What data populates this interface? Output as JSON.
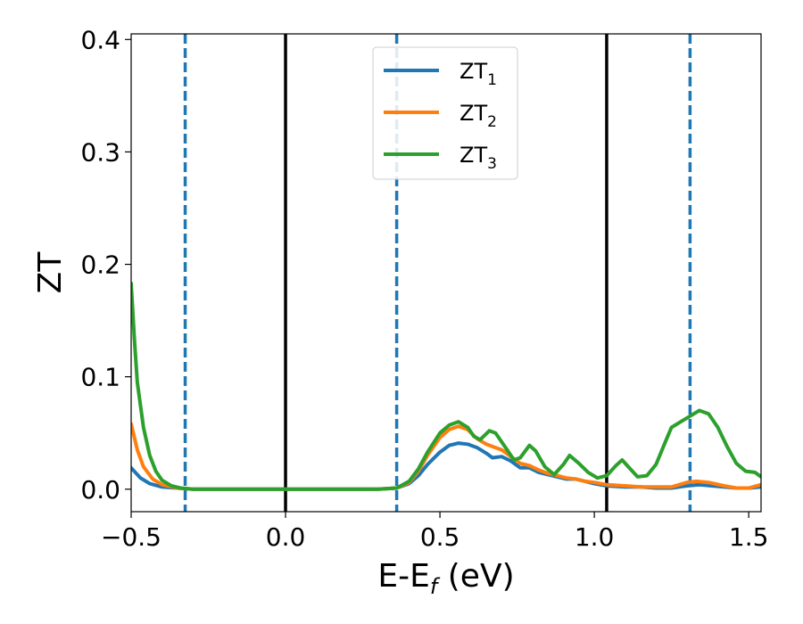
{
  "chart_data": {
    "type": "line",
    "xlabel": {
      "main": "E-E",
      "sub": "f",
      "unit": " (eV)"
    },
    "ylabel": "ZT",
    "xlim": [
      -0.5,
      1.54
    ],
    "ylim": [
      -0.02,
      0.405
    ],
    "xticks": [
      -0.5,
      0.0,
      0.5,
      1.0,
      1.5
    ],
    "xtick_labels": [
      "−0.5",
      "0.0",
      "0.5",
      "1.0",
      "1.5"
    ],
    "yticks": [
      0.0,
      0.1,
      0.2,
      0.3,
      0.4
    ],
    "ytick_labels": [
      "0.0",
      "0.1",
      "0.2",
      "0.3",
      "0.4"
    ],
    "grid": false,
    "legend_position": "top-center",
    "vlines": [
      {
        "x": -0.325,
        "style": "dashed",
        "color": "#1f77b4"
      },
      {
        "x": 0.0,
        "style": "solid",
        "color": "#000000"
      },
      {
        "x": 0.36,
        "style": "dashed",
        "color": "#1f77b4"
      },
      {
        "x": 1.04,
        "style": "solid",
        "color": "#000000"
      },
      {
        "x": 1.31,
        "style": "dashed",
        "color": "#1f77b4"
      }
    ],
    "series": [
      {
        "name": "ZT",
        "name_sub": "1",
        "color": "#1f77b4",
        "points": [
          [
            -0.5,
            0.019
          ],
          [
            -0.47,
            0.01
          ],
          [
            -0.44,
            0.005
          ],
          [
            -0.4,
            0.002
          ],
          [
            -0.35,
            0.001
          ],
          [
            -0.3,
            0.0
          ],
          [
            -0.2,
            0.0
          ],
          [
            0.0,
            0.0
          ],
          [
            0.2,
            0.0
          ],
          [
            0.3,
            0.0
          ],
          [
            0.36,
            0.001
          ],
          [
            0.4,
            0.005
          ],
          [
            0.43,
            0.012
          ],
          [
            0.46,
            0.022
          ],
          [
            0.5,
            0.033
          ],
          [
            0.53,
            0.039
          ],
          [
            0.56,
            0.041
          ],
          [
            0.59,
            0.04
          ],
          [
            0.62,
            0.037
          ],
          [
            0.65,
            0.032
          ],
          [
            0.67,
            0.028
          ],
          [
            0.7,
            0.029
          ],
          [
            0.73,
            0.025
          ],
          [
            0.76,
            0.019
          ],
          [
            0.79,
            0.019
          ],
          [
            0.82,
            0.015
          ],
          [
            0.85,
            0.013
          ],
          [
            0.88,
            0.011
          ],
          [
            0.91,
            0.009
          ],
          [
            0.94,
            0.009
          ],
          [
            0.97,
            0.007
          ],
          [
            1.0,
            0.005
          ],
          [
            1.04,
            0.003
          ],
          [
            1.1,
            0.002
          ],
          [
            1.15,
            0.002
          ],
          [
            1.2,
            0.001
          ],
          [
            1.25,
            0.001
          ],
          [
            1.3,
            0.003
          ],
          [
            1.34,
            0.004
          ],
          [
            1.38,
            0.003
          ],
          [
            1.42,
            0.002
          ],
          [
            1.46,
            0.001
          ],
          [
            1.5,
            0.001
          ],
          [
            1.54,
            0.002
          ]
        ]
      },
      {
        "name": "ZT",
        "name_sub": "2",
        "color": "#ff7f0e",
        "points": [
          [
            -0.5,
            0.058
          ],
          [
            -0.48,
            0.035
          ],
          [
            -0.46,
            0.02
          ],
          [
            -0.43,
            0.009
          ],
          [
            -0.4,
            0.004
          ],
          [
            -0.35,
            0.001
          ],
          [
            -0.3,
            0.0
          ],
          [
            -0.2,
            0.0
          ],
          [
            0.0,
            0.0
          ],
          [
            0.2,
            0.0
          ],
          [
            0.3,
            0.0
          ],
          [
            0.36,
            0.001
          ],
          [
            0.4,
            0.006
          ],
          [
            0.43,
            0.016
          ],
          [
            0.46,
            0.03
          ],
          [
            0.5,
            0.046
          ],
          [
            0.53,
            0.053
          ],
          [
            0.56,
            0.056
          ],
          [
            0.59,
            0.053
          ],
          [
            0.62,
            0.045
          ],
          [
            0.65,
            0.04
          ],
          [
            0.67,
            0.038
          ],
          [
            0.7,
            0.035
          ],
          [
            0.73,
            0.029
          ],
          [
            0.76,
            0.023
          ],
          [
            0.79,
            0.021
          ],
          [
            0.82,
            0.017
          ],
          [
            0.85,
            0.014
          ],
          [
            0.88,
            0.012
          ],
          [
            0.91,
            0.01
          ],
          [
            0.94,
            0.009
          ],
          [
            0.97,
            0.007
          ],
          [
            1.0,
            0.006
          ],
          [
            1.04,
            0.004
          ],
          [
            1.1,
            0.003
          ],
          [
            1.15,
            0.002
          ],
          [
            1.2,
            0.002
          ],
          [
            1.25,
            0.002
          ],
          [
            1.3,
            0.006
          ],
          [
            1.33,
            0.007
          ],
          [
            1.37,
            0.006
          ],
          [
            1.42,
            0.003
          ],
          [
            1.46,
            0.001
          ],
          [
            1.5,
            0.001
          ],
          [
            1.54,
            0.004
          ]
        ]
      },
      {
        "name": "ZT",
        "name_sub": "3",
        "color": "#2ca02c",
        "points": [
          [
            -0.5,
            0.183
          ],
          [
            -0.49,
            0.135
          ],
          [
            -0.48,
            0.095
          ],
          [
            -0.46,
            0.055
          ],
          [
            -0.44,
            0.03
          ],
          [
            -0.42,
            0.016
          ],
          [
            -0.4,
            0.008
          ],
          [
            -0.37,
            0.003
          ],
          [
            -0.34,
            0.001
          ],
          [
            -0.3,
            0.0
          ],
          [
            -0.2,
            0.0
          ],
          [
            0.0,
            0.0
          ],
          [
            0.2,
            0.0
          ],
          [
            0.3,
            0.0
          ],
          [
            0.36,
            0.001
          ],
          [
            0.4,
            0.007
          ],
          [
            0.43,
            0.018
          ],
          [
            0.46,
            0.033
          ],
          [
            0.5,
            0.05
          ],
          [
            0.53,
            0.057
          ],
          [
            0.56,
            0.06
          ],
          [
            0.59,
            0.055
          ],
          [
            0.61,
            0.047
          ],
          [
            0.63,
            0.044
          ],
          [
            0.66,
            0.052
          ],
          [
            0.68,
            0.05
          ],
          [
            0.71,
            0.038
          ],
          [
            0.74,
            0.026
          ],
          [
            0.76,
            0.028
          ],
          [
            0.79,
            0.039
          ],
          [
            0.81,
            0.034
          ],
          [
            0.84,
            0.02
          ],
          [
            0.87,
            0.013
          ],
          [
            0.9,
            0.022
          ],
          [
            0.92,
            0.03
          ],
          [
            0.95,
            0.023
          ],
          [
            0.98,
            0.015
          ],
          [
            1.01,
            0.01
          ],
          [
            1.04,
            0.012
          ],
          [
            1.07,
            0.021
          ],
          [
            1.09,
            0.026
          ],
          [
            1.11,
            0.02
          ],
          [
            1.14,
            0.011
          ],
          [
            1.17,
            0.012
          ],
          [
            1.2,
            0.022
          ],
          [
            1.23,
            0.042
          ],
          [
            1.25,
            0.055
          ],
          [
            1.28,
            0.06
          ],
          [
            1.31,
            0.065
          ],
          [
            1.34,
            0.07
          ],
          [
            1.37,
            0.067
          ],
          [
            1.4,
            0.055
          ],
          [
            1.43,
            0.038
          ],
          [
            1.46,
            0.023
          ],
          [
            1.49,
            0.016
          ],
          [
            1.52,
            0.015
          ],
          [
            1.54,
            0.011
          ]
        ]
      }
    ]
  }
}
